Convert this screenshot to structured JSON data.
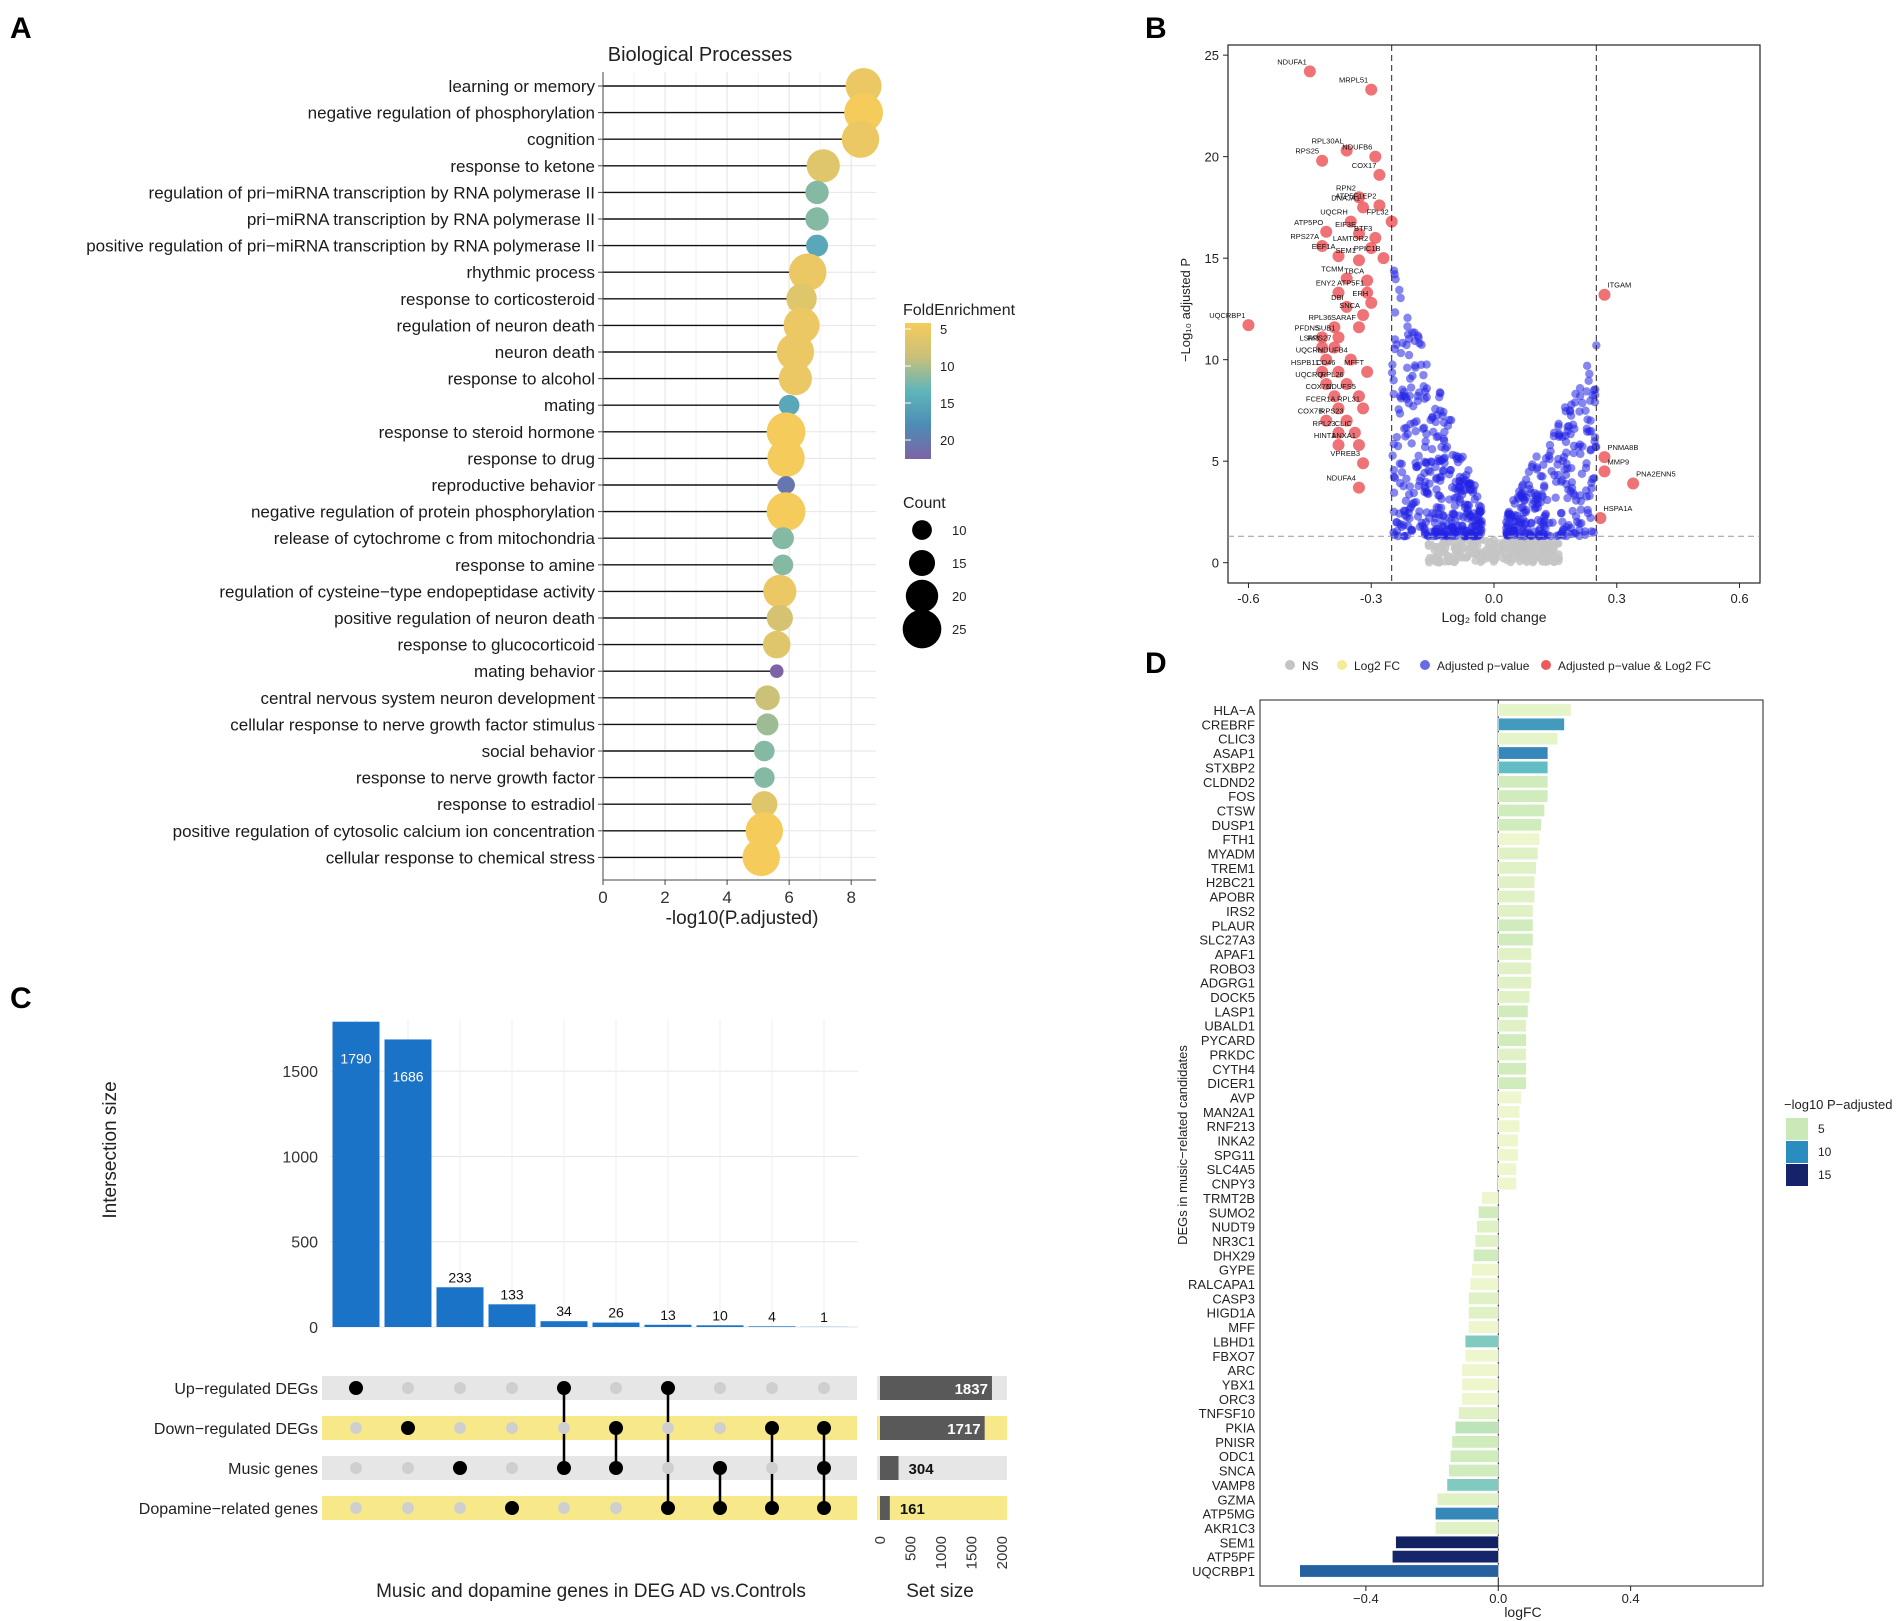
{
  "panels": {
    "A": "A",
    "B": "B",
    "C": "C",
    "D": "D"
  },
  "colors": {
    "gold": "#F3C95A",
    "teal": "#4FB2C1",
    "purple": "#7E6CA8",
    "blue": "#1B73C8",
    "volc_blue": "#1f1fe0",
    "volc_red": "#e8474b",
    "grey": "#bdbdbd",
    "highlight": "#f7e98a",
    "lightgrey": "#e6e6e6",
    "darkbar": "#595959"
  },
  "chart_data": [
    {
      "id": "A",
      "type": "lollipop",
      "title": "Biological Processes",
      "xlabel": "-log10(P.adjusted)",
      "xlim": [
        0,
        8.8
      ],
      "xticks": [
        0,
        2,
        4,
        6,
        8
      ],
      "categories": [
        "learning or memory",
        "negative regulation of phosphorylation",
        "cognition",
        "response to ketone",
        "regulation of pri−miRNA transcription by RNA polymerase II",
        "pri−miRNA transcription by RNA polymerase II",
        "positive regulation of pri−miRNA transcription by RNA polymerase II",
        "rhythmic process",
        "response to corticosteroid",
        "regulation of neuron death",
        "neuron death",
        "response to alcohol",
        "mating",
        "response to steroid hormone",
        "response to drug",
        "reproductive behavior",
        "negative regulation of protein phosphorylation",
        "release of cytochrome c from mitochondria",
        "response to amine",
        "regulation of cysteine−type endopeptidase activity",
        "positive regulation of neuron death",
        "response to glucocorticoid",
        "mating behavior",
        "central nervous system neuron development",
        "cellular response to nerve growth factor stimulus",
        "social behavior",
        "response to nerve growth factor",
        "response to estradiol",
        "positive regulation of cytosolic calcium ion concentration",
        "cellular response to chemical stress"
      ],
      "values": [
        8.4,
        8.4,
        8.3,
        7.1,
        6.9,
        6.9,
        6.9,
        6.6,
        6.4,
        6.4,
        6.2,
        6.2,
        6.0,
        5.9,
        5.9,
        5.9,
        5.9,
        5.8,
        5.8,
        5.7,
        5.7,
        5.6,
        5.6,
        5.3,
        5.3,
        5.2,
        5.2,
        5.2,
        5.2,
        5.1
      ],
      "fold_enrichment": [
        6,
        5,
        6,
        7,
        12,
        12,
        15,
        6,
        7,
        6,
        6,
        6,
        15,
        5,
        5,
        20,
        5,
        12,
        12,
        6,
        8,
        7,
        22,
        9,
        11,
        12,
        12,
        7,
        5,
        5
      ],
      "count": [
        20,
        22,
        21,
        18,
        11,
        11,
        10,
        21,
        16,
        20,
        21,
        18,
        9,
        22,
        21,
        7,
        22,
        10,
        9,
        18,
        13,
        14,
        4,
        12,
        10,
        9,
        9,
        13,
        21,
        21
      ],
      "legend_color_title": "FoldEnrichment",
      "legend_color_ticks": [
        "5",
        "10",
        "15",
        "20"
      ],
      "legend_size_title": "Count",
      "legend_size_ticks": [
        "10",
        "15",
        "20",
        "25"
      ]
    },
    {
      "id": "B",
      "type": "scatter",
      "subtype": "volcano",
      "xlabel": "Log₂ fold change",
      "ylabel": "−Log₁₀ adjusted P",
      "xlim": [
        -0.65,
        0.65
      ],
      "ylim": [
        -1,
        25.5
      ],
      "xticks": [
        "-0.6",
        "-0.3",
        "0.0",
        "0.3",
        "0.6"
      ],
      "yticks": [
        "0",
        "5",
        "10",
        "15",
        "20",
        "25"
      ],
      "fc_cutoff": 0.25,
      "p_cutoff": 1.3,
      "legend": [
        "NS",
        "Log2 FC",
        "Adjusted p−value",
        "Adjusted p−value & Log2 FC"
      ],
      "labeled_points": [
        {
          "label": "NDUFA1",
          "x": -0.45,
          "y": 24.2
        },
        {
          "label": "MRPL51",
          "x": -0.3,
          "y": 23.3
        },
        {
          "label": "RPL30AL",
          "x": -0.36,
          "y": 20.3
        },
        {
          "label": "RPS25",
          "x": -0.42,
          "y": 19.8
        },
        {
          "label": "NDUFB6",
          "x": -0.29,
          "y": 20.0
        },
        {
          "label": "COX17",
          "x": -0.28,
          "y": 19.1
        },
        {
          "label": "RPN2",
          "x": -0.33,
          "y": 18.0
        },
        {
          "label": "DNAJA1",
          "x": -0.32,
          "y": 17.5
        },
        {
          "label": "ATP5F1EP2",
          "x": -0.28,
          "y": 17.6
        },
        {
          "label": "UQCRH",
          "x": -0.35,
          "y": 16.8
        },
        {
          "label": "FPL32",
          "x": -0.25,
          "y": 16.8
        },
        {
          "label": "ATP5PO",
          "x": -0.41,
          "y": 16.3
        },
        {
          "label": "EIF3E",
          "x": -0.33,
          "y": 16.2
        },
        {
          "label": "BTF3",
          "x": -0.29,
          "y": 16.0
        },
        {
          "label": "RPS27A",
          "x": -0.42,
          "y": 15.6
        },
        {
          "label": "LAMTOR2",
          "x": -0.3,
          "y": 15.5
        },
        {
          "label": "EEF1A",
          "x": -0.38,
          "y": 15.1
        },
        {
          "label": "SEM1",
          "x": -0.33,
          "y": 14.9
        },
        {
          "label": "PPIC1B",
          "x": -0.27,
          "y": 15.0
        },
        {
          "label": "TCMM",
          "x": -0.36,
          "y": 14.0
        },
        {
          "label": "TBCA",
          "x": -0.31,
          "y": 13.9
        },
        {
          "label": "ENY2",
          "x": -0.38,
          "y": 13.3
        },
        {
          "label": "ATP5F1",
          "x": -0.31,
          "y": 13.3
        },
        {
          "label": "DBI",
          "x": -0.36,
          "y": 12.6
        },
        {
          "label": "ERH",
          "x": -0.3,
          "y": 12.8
        },
        {
          "label": "UQCRBP1",
          "x": -0.6,
          "y": 11.7
        },
        {
          "label": "SNCA",
          "x": -0.32,
          "y": 12.2
        },
        {
          "label": "RPL36",
          "x": -0.39,
          "y": 11.6
        },
        {
          "label": "SARAF",
          "x": -0.33,
          "y": 11.6
        },
        {
          "label": "PFDN5",
          "x": -0.42,
          "y": 11.1
        },
        {
          "label": "SUB1",
          "x": -0.38,
          "y": 11.1
        },
        {
          "label": "LSM3",
          "x": -0.42,
          "y": 10.6
        },
        {
          "label": "RPS27",
          "x": -0.39,
          "y": 10.6
        },
        {
          "label": "UQCRH",
          "x": -0.41,
          "y": 10.0
        },
        {
          "label": "NDUFB4",
          "x": -0.35,
          "y": 10.0
        },
        {
          "label": "HSPB11",
          "x": -0.42,
          "y": 9.4
        },
        {
          "label": "CD46",
          "x": -0.38,
          "y": 9.4
        },
        {
          "label": "MFFT",
          "x": -0.31,
          "y": 9.4
        },
        {
          "label": "UQCRQ",
          "x": -0.41,
          "y": 8.8
        },
        {
          "label": "RPL26",
          "x": -0.36,
          "y": 8.8
        },
        {
          "label": "COX7C",
          "x": -0.39,
          "y": 8.2
        },
        {
          "label": "NDUFS5",
          "x": -0.33,
          "y": 8.2
        },
        {
          "label": "FCER1A",
          "x": -0.38,
          "y": 7.6
        },
        {
          "label": "RPL31",
          "x": -0.32,
          "y": 7.6
        },
        {
          "label": "COX7B",
          "x": -0.41,
          "y": 7.0
        },
        {
          "label": "RPS23",
          "x": -0.36,
          "y": 7.0
        },
        {
          "label": "RPL23",
          "x": -0.38,
          "y": 6.4
        },
        {
          "label": "CLIC",
          "x": -0.34,
          "y": 6.4
        },
        {
          "label": "HINT1",
          "x": -0.38,
          "y": 5.8
        },
        {
          "label": "ANXA1",
          "x": -0.33,
          "y": 5.8
        },
        {
          "label": "VPREB3",
          "x": -0.32,
          "y": 4.9
        },
        {
          "label": "NDUFA4",
          "x": -0.33,
          "y": 3.7
        },
        {
          "label": "ITGAM",
          "x": 0.27,
          "y": 13.2
        },
        {
          "label": "PNMA8B",
          "x": 0.27,
          "y": 5.2
        },
        {
          "label": "MMP9",
          "x": 0.27,
          "y": 4.5
        },
        {
          "label": "PNA2ENN5",
          "x": 0.34,
          "y": 3.9
        },
        {
          "label": "HSPA1A",
          "x": 0.26,
          "y": 2.2
        }
      ]
    },
    {
      "id": "C",
      "type": "bar",
      "subtype": "upset",
      "xlabel": "Music and dopamine genes in DEG AD vs.Controls",
      "ylabel": "Intersection size",
      "ylim": [
        0,
        1800
      ],
      "yticks": [
        "0",
        "500",
        "1000",
        "1500"
      ],
      "values": [
        1790,
        1686,
        233,
        133,
        34,
        26,
        13,
        10,
        4,
        1
      ],
      "sets": [
        "Up−regulated DEGs",
        "Down−regulated DEGs",
        "Music genes",
        "Dopamine−related genes"
      ],
      "membership": [
        [
          0
        ],
        [
          1
        ],
        [
          2
        ],
        [
          3
        ],
        [
          0,
          2
        ],
        [
          1,
          2
        ],
        [
          0,
          3
        ],
        [
          2,
          3
        ],
        [
          1,
          3
        ],
        [
          1,
          2,
          3
        ]
      ],
      "set_sizes": [
        1837,
        1717,
        304,
        161
      ],
      "set_size_label": "Set size",
      "set_size_ticks": [
        "0",
        "500",
        "1000",
        "1500",
        "2000"
      ],
      "set_size_max": 2100
    },
    {
      "id": "D",
      "type": "bar",
      "subtype": "horizontal",
      "xlabel": "logFC",
      "ylabel": "DEGs in music−related candidates",
      "xlim": [
        -0.72,
        0.8
      ],
      "xticks": [
        "−0.4",
        "0.0",
        "0.4"
      ],
      "categories": [
        "HLA−A",
        "CREBRF",
        "CLIC3",
        "ASAP1",
        "STXBP2",
        "CLDND2",
        "FOS",
        "CTSW",
        "DUSP1",
        "FTH1",
        "MYADM",
        "TREM1",
        "H2BC21",
        "APOBR",
        "IRS2",
        "PLAUR",
        "SLC27A3",
        "APAF1",
        "ROBO3",
        "ADGRG1",
        "DOCK5",
        "LASP1",
        "UBALD1",
        "PYCARD",
        "PRKDC",
        "CYTH4",
        "DICER1",
        "AVP",
        "MAN2A1",
        "RNF213",
        "INKA2",
        "SPG11",
        "SLC4A5",
        "CNPY3",
        "TRMT2B",
        "SUMO2",
        "NUDT9",
        "NR3C1",
        "DHX29",
        "GYPE",
        "RALCAPA1",
        "CASP3",
        "HIGD1A",
        "MFF",
        "LBHD1",
        "FBXO7",
        "ARC",
        "YBX1",
        "ORC3",
        "TNFSF10",
        "PKIA",
        "PNISR",
        "ODC1",
        "SNCA",
        "VAMP8",
        "GZMA",
        "ATP5MG",
        "AKR1C3",
        "SEM1",
        "ATP5PF",
        "UQCRBP1"
      ],
      "values": [
        0.22,
        0.2,
        0.18,
        0.15,
        0.15,
        0.15,
        0.15,
        0.14,
        0.13,
        0.125,
        0.12,
        0.115,
        0.11,
        0.11,
        0.105,
        0.105,
        0.105,
        0.1,
        0.1,
        0.1,
        0.095,
        0.09,
        0.085,
        0.085,
        0.085,
        0.085,
        0.085,
        0.07,
        0.065,
        0.065,
        0.06,
        0.06,
        0.055,
        0.055,
        -0.05,
        -0.06,
        -0.065,
        -0.07,
        -0.075,
        -0.08,
        -0.085,
        -0.09,
        -0.09,
        -0.09,
        -0.1,
        -0.1,
        -0.11,
        -0.11,
        -0.11,
        -0.12,
        -0.13,
        -0.14,
        -0.145,
        -0.15,
        -0.155,
        -0.185,
        -0.19,
        -0.19,
        -0.31,
        -0.32,
        -0.6
      ],
      "neglog10p": [
        1.5,
        9,
        1.5,
        10,
        7,
        3,
        3,
        3,
        3,
        1,
        2,
        2,
        2,
        2,
        2,
        3,
        3,
        2,
        2,
        2,
        2,
        3,
        2,
        3,
        2,
        3,
        3,
        1,
        1,
        1,
        1,
        1,
        1,
        1,
        1,
        3,
        2,
        2,
        3,
        1,
        1,
        2,
        2,
        1,
        6,
        1,
        1,
        1,
        1,
        2,
        4,
        3,
        3,
        3,
        6,
        2,
        10,
        2,
        17,
        16,
        12
      ],
      "legend_title": "−log10 P−adjusted",
      "legend_ticks": [
        "5",
        "10",
        "15"
      ]
    }
  ]
}
